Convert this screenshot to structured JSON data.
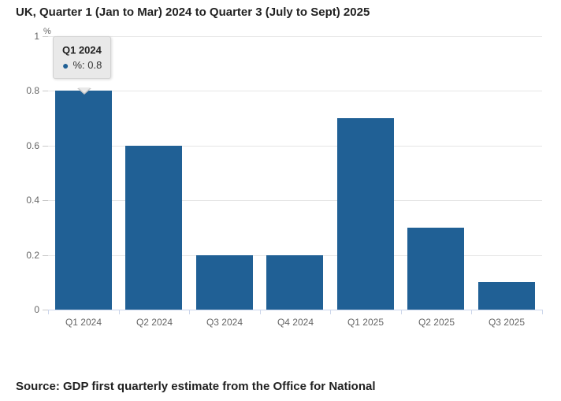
{
  "header": {
    "title": "UK, Quarter 1 (Jan to Mar) 2024 to Quarter 3 (July to Sept) 2025"
  },
  "footer": {
    "source": "Source: GDP first quarterly estimate from the Office for National"
  },
  "tooltip": {
    "title": "Q1 2024",
    "bullet": "●",
    "value_label": "%: 0.8"
  },
  "colors": {
    "bar": "#206095",
    "gridline": "#e6e6e6",
    "axis": "#ccd6eb",
    "axis_label": "#666666",
    "title_text": "#222222",
    "tooltip_bg": "#e9e9e9",
    "tooltip_border": "#d2d2d2"
  },
  "chart_data": {
    "type": "bar",
    "title": "UK, Quarter 1 (Jan to Mar) 2024 to Quarter 3 (July to Sept) 2025",
    "categories": [
      "Q1 2024",
      "Q2 2024",
      "Q3 2024",
      "Q4 2024",
      "Q1 2025",
      "Q2 2025",
      "Q3 2025"
    ],
    "values": [
      0.8,
      0.6,
      0.2,
      0.2,
      0.7,
      0.3,
      0.1
    ],
    "xlabel": "",
    "ylabel": "%",
    "ylim": [
      0,
      1
    ],
    "yticks": [
      0,
      0.2,
      0.4,
      0.6,
      0.8,
      1
    ],
    "grid": true,
    "legend": "none",
    "bar_color": "#206095",
    "highlighted_category": "Q1 2024",
    "tooltip": {
      "title": "Q1 2024",
      "value_label": "%: 0.8"
    }
  }
}
